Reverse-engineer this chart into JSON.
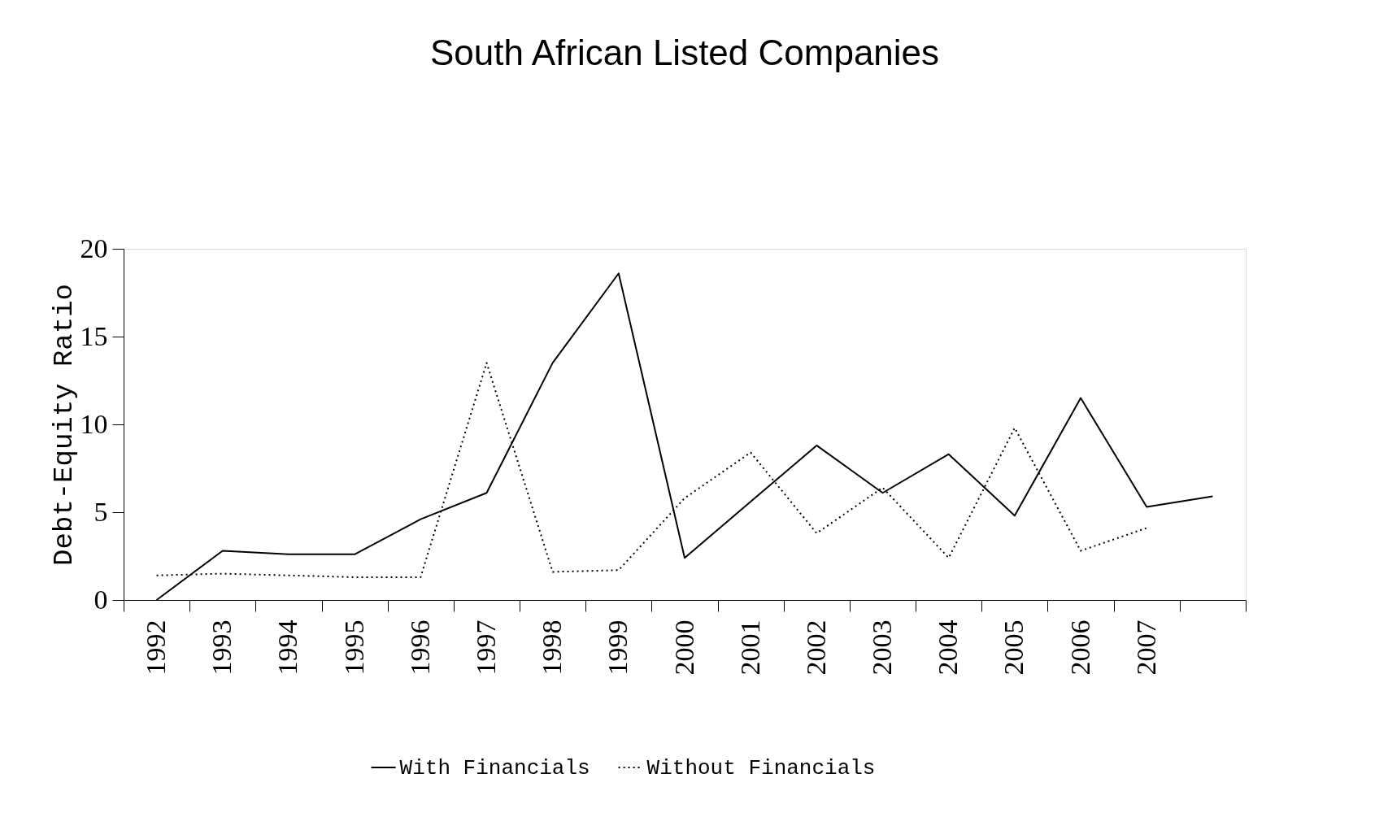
{
  "chart_data": {
    "type": "line",
    "title": "South African Listed Companies",
    "ylabel": "Debt-Equity Ratio",
    "categories": [
      "1992",
      "1993",
      "1994",
      "1995",
      "1996",
      "1997",
      "1998",
      "1999",
      "2000",
      "2001",
      "2002",
      "2003",
      "2004",
      "2005",
      "2006",
      "2007",
      null
    ],
    "series": [
      {
        "name": "With Financials",
        "color": "#000000",
        "line_style": "solid",
        "values": [
          0,
          2.8,
          2.6,
          2.6,
          4.6,
          6.1,
          13.5,
          18.6,
          2.4,
          5.6,
          8.8,
          6.1,
          8.3,
          4.8,
          11.5,
          5.3,
          5.9
        ]
      },
      {
        "name": "Without Financials",
        "color": "#000000",
        "line_style": "dotted",
        "values": [
          1.4,
          1.5,
          1.4,
          1.3,
          1.3,
          13.5,
          1.6,
          1.7,
          5.8,
          8.4,
          3.8,
          6.4,
          2.4,
          9.8,
          2.8,
          4.1,
          null
        ]
      }
    ],
    "ylim": [
      0,
      20
    ],
    "yticks": [
      0,
      5,
      10,
      15,
      20
    ],
    "grid": false,
    "legend": "bottom",
    "marker": "none"
  }
}
